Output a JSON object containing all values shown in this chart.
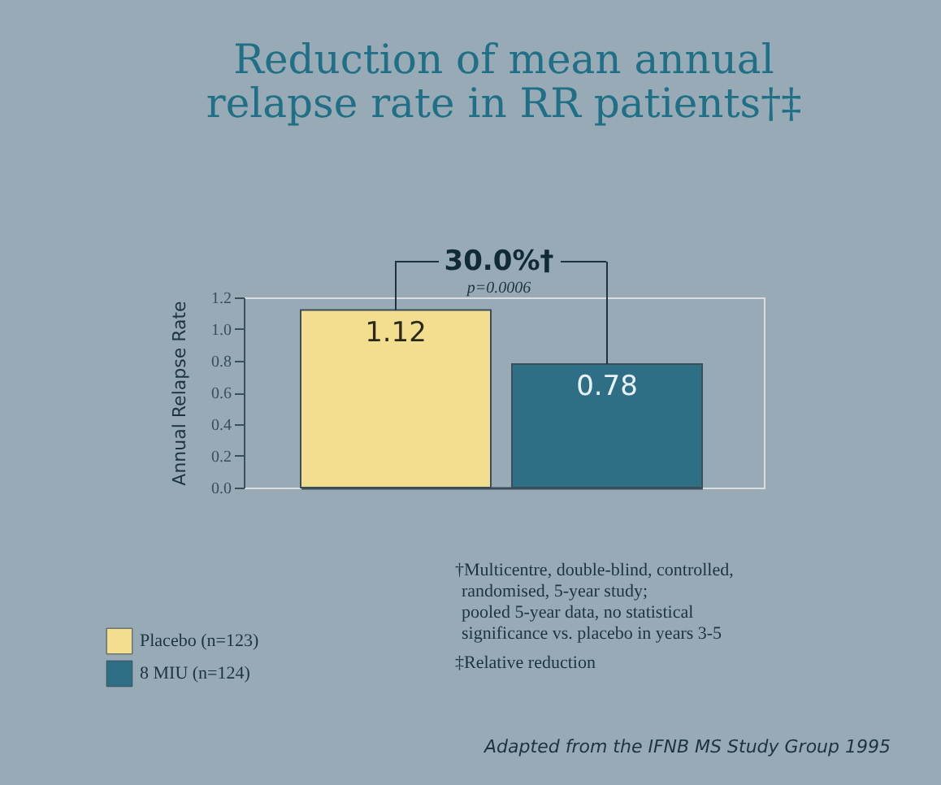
{
  "chart_data": {
    "type": "bar",
    "title": [
      "Reduction of mean annual",
      "relapse rate in RR patients†‡"
    ],
    "ylabel": "Annual Relapse Rate",
    "categories": [
      null
    ],
    "series": [
      {
        "name": "Placebo (n=123)",
        "color": "#f2de8e",
        "values": [
          1.12
        ]
      },
      {
        "name": "8 MIU (n=124)",
        "color": "#2e6f86",
        "values": [
          0.78
        ]
      }
    ],
    "ylim": [
      0,
      1.2
    ],
    "yticks": [
      {
        "value": 0,
        "label": "0.0"
      },
      0.2,
      0.4,
      0.6,
      0.8,
      {
        "value": 1,
        "label": "1.0"
      },
      1.2
    ],
    "data_labels": true,
    "legend": "bottom left",
    "tick_labels": "y",
    "grid": false,
    "annotations": [
      "30.0%†",
      "p=0.0006",
      "†Multicentre, double-blind, controlled,",
      "randomised, 5-year study;",
      "pooled 5-year data, no statistical",
      "significance vs. placebo in years 3-5",
      "‡Relative reduction",
      "Adapted from the IFNB MS Study Group 1995"
    ]
  }
}
